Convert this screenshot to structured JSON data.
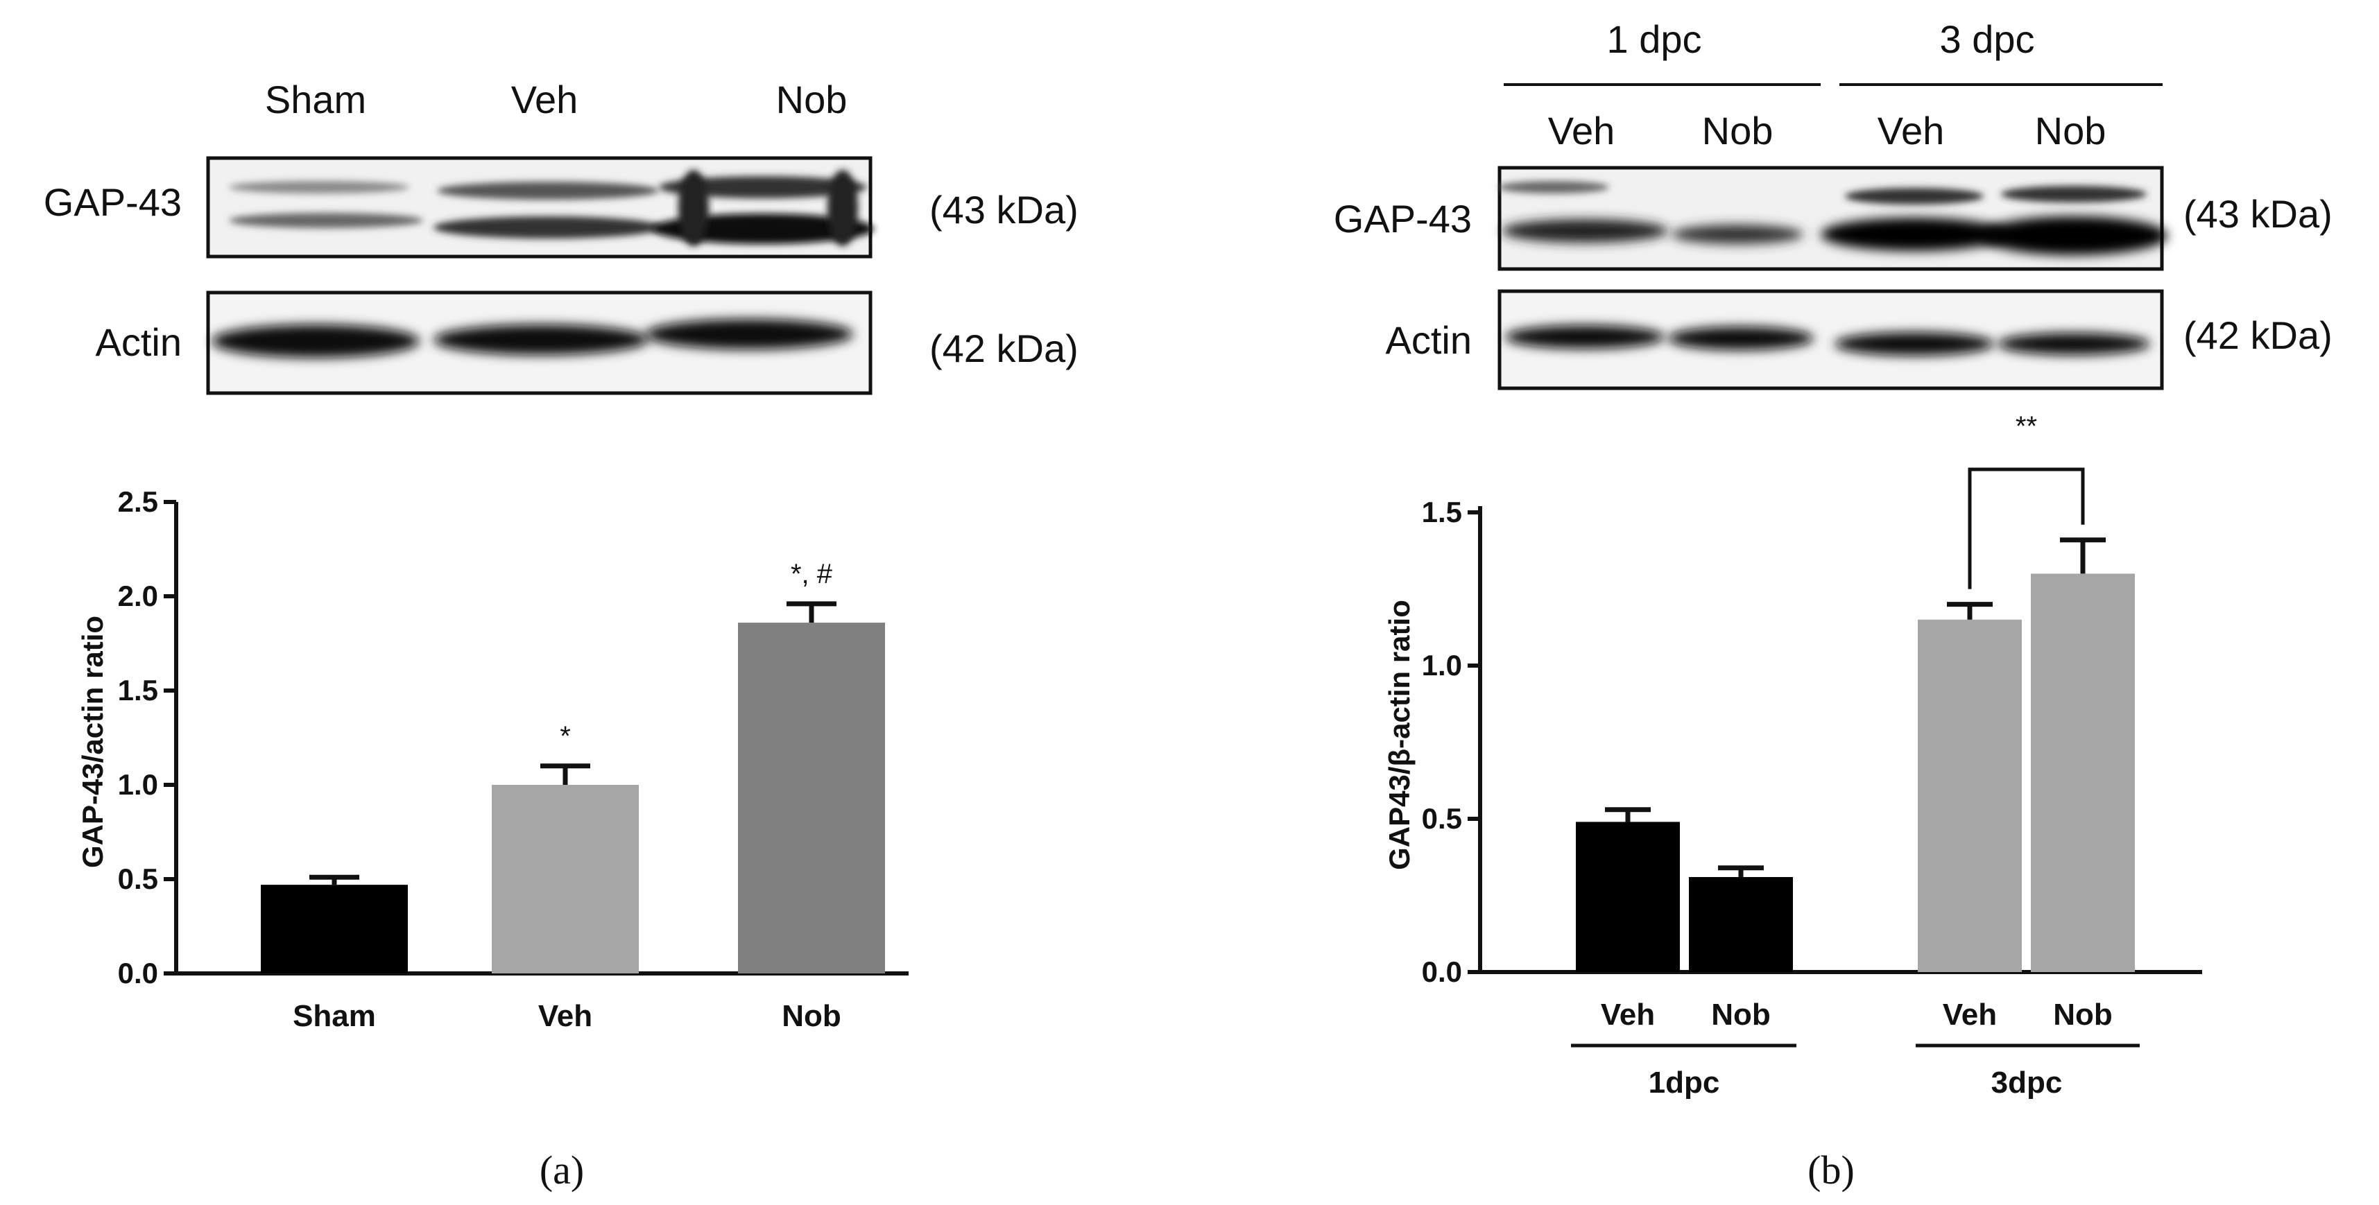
{
  "panels": [
    {
      "id": "a",
      "caption": "(a)",
      "blot": {
        "lane_labels": [
          "Sham",
          "Veh",
          "Nob"
        ],
        "rows": [
          {
            "name": "GAP-43",
            "size": "(43 kDa)"
          },
          {
            "name": "Actin",
            "size": "(42 kDa)"
          }
        ]
      }
    },
    {
      "id": "b",
      "caption": "(b)",
      "blot": {
        "group_labels": [
          "1 dpc",
          "3 dpc"
        ],
        "lane_labels": [
          "Veh",
          "Nob",
          "Veh",
          "Nob"
        ],
        "rows": [
          {
            "name": "GAP-43",
            "size": "(43 kDa)"
          },
          {
            "name": "Actin",
            "size": "(42 kDa)"
          }
        ]
      }
    }
  ],
  "chart_data": [
    {
      "type": "bar",
      "panel": "a",
      "categories": [
        "Sham",
        "Veh",
        "Nob"
      ],
      "values": [
        0.47,
        1.0,
        1.86
      ],
      "errors": [
        0.04,
        0.1,
        0.1
      ],
      "bar_colors": [
        "#000000",
        "#a6a6a6",
        "#808080"
      ],
      "annotations": [
        "",
        "*",
        "*, #"
      ],
      "ylabel": "GAP-43/actin ratio",
      "ylim": [
        0,
        2.5
      ],
      "yticks": [
        "0.0",
        "0.5",
        "1.0",
        "1.5",
        "2.0",
        "2.5"
      ]
    },
    {
      "type": "bar",
      "panel": "b",
      "categories": [
        "Veh",
        "Nob",
        "Veh",
        "Nob"
      ],
      "groups": [
        "1dpc",
        "3dpc"
      ],
      "values": [
        0.49,
        0.31,
        1.15,
        1.3
      ],
      "errors": [
        0.04,
        0.03,
        0.05,
        0.11
      ],
      "bar_colors": [
        "#000000",
        "#000000",
        "#a6a6a6",
        "#a6a6a6"
      ],
      "significance": {
        "between": [
          2,
          3
        ],
        "label": "**"
      },
      "ylabel": "GAP43/β-actin ratio",
      "ylim": [
        0,
        1.5
      ],
      "yticks": [
        "0.0",
        "0.5",
        "1.0",
        "1.5"
      ]
    }
  ]
}
